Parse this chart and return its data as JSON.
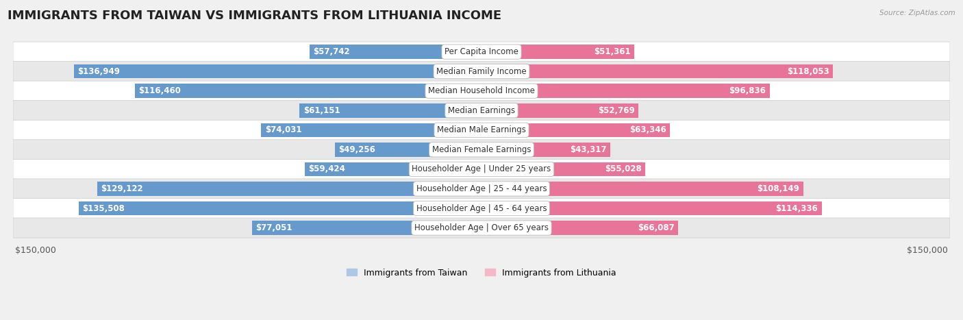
{
  "title": "IMMIGRANTS FROM TAIWAN VS IMMIGRANTS FROM LITHUANIA INCOME",
  "source": "Source: ZipAtlas.com",
  "categories": [
    "Per Capita Income",
    "Median Family Income",
    "Median Household Income",
    "Median Earnings",
    "Median Male Earnings",
    "Median Female Earnings",
    "Householder Age | Under 25 years",
    "Householder Age | 25 - 44 years",
    "Householder Age | 45 - 64 years",
    "Householder Age | Over 65 years"
  ],
  "taiwan_values": [
    57742,
    136949,
    116460,
    61151,
    74031,
    49256,
    59424,
    129122,
    135508,
    77051
  ],
  "lithuania_values": [
    51361,
    118053,
    96836,
    52769,
    63346,
    43317,
    55028,
    108149,
    114336,
    66087
  ],
  "taiwan_labels": [
    "$57,742",
    "$136,949",
    "$116,460",
    "$61,151",
    "$74,031",
    "$49,256",
    "$59,424",
    "$129,122",
    "$135,508",
    "$77,051"
  ],
  "lithuania_labels": [
    "$51,361",
    "$118,053",
    "$96,836",
    "$52,769",
    "$63,346",
    "$43,317",
    "$55,028",
    "$108,149",
    "$114,336",
    "$66,087"
  ],
  "max_value": 150000,
  "taiwan_color_light": "#aec6e8",
  "taiwan_color_dark": "#6699cc",
  "lithuania_color_light": "#f4b8c8",
  "lithuania_color_dark": "#e8749a",
  "bg_color": "#f0f0f0",
  "row_bg_white": "#ffffff",
  "row_bg_gray": "#e8e8e8",
  "xlabel_left": "$150,000",
  "xlabel_right": "$150,000",
  "legend_taiwan": "Immigrants from Taiwan",
  "legend_lithuania": "Immigrants from Lithuania",
  "title_fontsize": 13,
  "label_fontsize": 8.5,
  "category_fontsize": 8.5,
  "inside_threshold": 0.28
}
